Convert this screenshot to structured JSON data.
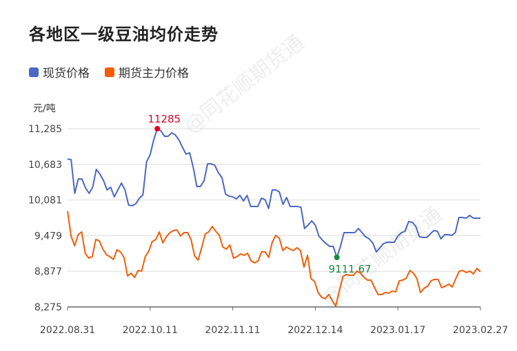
{
  "title": "各地区一级豆油均价走势",
  "watermark": "@同花顺期货通",
  "colors": {
    "spot": "#4a67c2",
    "futures": "#f25c05",
    "max_label": "#e5001f",
    "min_label": "#188a3c",
    "grid": "#dcdcdc",
    "axis": "#666666"
  },
  "chart_data": {
    "type": "line",
    "title": "各地区一级豆油均价走势",
    "ylabel": "元/吨",
    "ylim": [
      8275,
      11285
    ],
    "yticks": [
      8275,
      8877,
      9479,
      10081,
      10683,
      11285
    ],
    "ytick_labels": [
      "8,275",
      "8,877",
      "9,479",
      "10,081",
      "10,683",
      "11,285"
    ],
    "xtick_labels": [
      "2022.08.31",
      "2022.10.11",
      "2022.11.11",
      "2022.12.14",
      "2023.01.17",
      "2023.02.27"
    ],
    "grid": true,
    "legend": "top-left",
    "series": [
      {
        "name": "现货价格",
        "color": "#4a67c2",
        "values": [
          10774,
          10762,
          10193,
          10437,
          10437,
          10286,
          10193,
          10297,
          10599,
          10518,
          10414,
          10251,
          10297,
          10135,
          10250,
          10367,
          10251,
          9995,
          9984,
          10018,
          10111,
          10169,
          10727,
          10843,
          11099,
          11285,
          11250,
          11157,
          11157,
          11215,
          11180,
          11099,
          10971,
          10855,
          10878,
          10634,
          10309,
          10309,
          10402,
          10692,
          10692,
          10669,
          10541,
          10460,
          10181,
          10146,
          10135,
          10100,
          10158,
          10065,
          10158,
          9972,
          9972,
          9972,
          10111,
          10088,
          9937,
          10251,
          10251,
          10216,
          10007,
          10123,
          9972,
          9972,
          9972,
          9960,
          9600,
          9658,
          9728,
          9658,
          9472,
          9402,
          9344,
          9298,
          9298,
          9111.67,
          9298,
          9530,
          9530,
          9530,
          9530,
          9600,
          9530,
          9460,
          9425,
          9356,
          9205,
          9274,
          9344,
          9368,
          9368,
          9368,
          9472,
          9530,
          9553,
          9716,
          9705,
          9635,
          9460,
          9449,
          9449,
          9507,
          9565,
          9553,
          9425,
          9495,
          9495,
          9484,
          9530,
          9786,
          9786,
          9774,
          9821,
          9774,
          9774,
          9774
        ]
      },
      {
        "name": "期货主力价格",
        "color": "#f25c05",
        "values": [
          9891,
          9472,
          9309,
          9495,
          9542,
          9182,
          9100,
          9124,
          9414,
          9391,
          9251,
          9158,
          9124,
          9077,
          9240,
          9205,
          9112,
          8798,
          8845,
          8775,
          8891,
          8880,
          9124,
          9217,
          9379,
          9414,
          9542,
          9356,
          9461,
          9530,
          9565,
          9577,
          9472,
          9530,
          9530,
          9414,
          9136,
          9066,
          9275,
          9507,
          9542,
          9635,
          9553,
          9484,
          9286,
          9252,
          9321,
          9100,
          9124,
          9170,
          9147,
          9182,
          9054,
          9019,
          9054,
          9205,
          9205,
          9112,
          9368,
          9484,
          9437,
          9228,
          9286,
          9252,
          9228,
          9275,
          9228,
          8949,
          9147,
          8752,
          8705,
          8519,
          8438,
          8415,
          8485,
          8380,
          8290,
          8543,
          8787,
          8822,
          8810,
          8810,
          8880,
          8845,
          8775,
          8728,
          8728,
          8600,
          8484,
          8484,
          8519,
          8508,
          8543,
          8531,
          8717,
          8728,
          8763,
          8891,
          8845,
          8752,
          8519,
          8589,
          8624,
          8717,
          8740,
          8740,
          8600,
          8624,
          8659,
          8612,
          8752,
          8880,
          8891,
          8856,
          8880,
          8833,
          8926,
          8868
        ]
      }
    ],
    "annotations": {
      "max": {
        "series": "现货价格",
        "label": "11285",
        "value": 11285
      },
      "min": {
        "series": "现货价格",
        "label": "9111.67",
        "value": 9111.67
      }
    }
  }
}
